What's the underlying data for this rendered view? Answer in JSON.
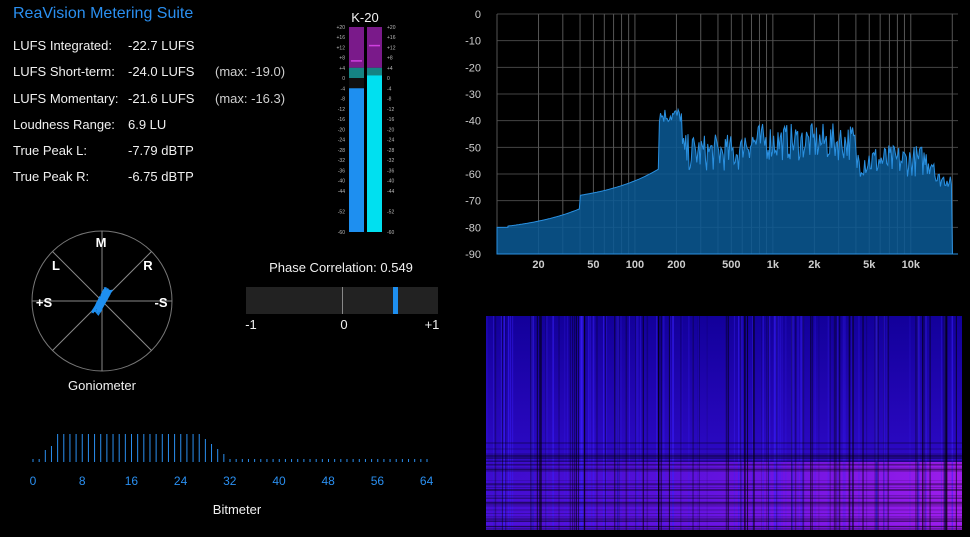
{
  "app": {
    "title": "ReaVision Metering Suite"
  },
  "readouts": [
    {
      "label": "LUFS Integrated:",
      "value": "-22.7 LUFS",
      "max": ""
    },
    {
      "label": "LUFS Short-term:",
      "value": "-24.0 LUFS",
      "max": "(max: -19.0)"
    },
    {
      "label": "LUFS Momentary:",
      "value": "-21.6 LUFS",
      "max": "(max: -16.3)"
    },
    {
      "label": "Loudness Range:",
      "value": "6.9 LU",
      "max": ""
    },
    {
      "label": "True Peak L:",
      "value": "-7.79 dBTP",
      "max": ""
    },
    {
      "label": "True Peak R:",
      "value": "-6.75 dBTP",
      "max": ""
    }
  ],
  "kmeter": {
    "title": "K-20",
    "scale": [
      "+20",
      "+16",
      "+12",
      "+8",
      "+4",
      "0",
      "-4",
      "-8",
      "-12",
      "-16",
      "-20",
      "-24",
      "-28",
      "-32",
      "-36",
      "-40",
      "-44",
      "-52",
      "-60"
    ],
    "left_level_db": -4,
    "right_level_db": 1,
    "left_peak_db": 7,
    "right_peak_db": 13,
    "colors": {
      "left": "#1e8ff0",
      "right": "#00e0f0",
      "hot": "#7a1a8a",
      "warn": "#16a0a0"
    }
  },
  "goniometer": {
    "caption": "Goniometer",
    "labels": {
      "top": "M",
      "left": "L",
      "right": "R",
      "side_left": "+S",
      "side_right": "-S"
    }
  },
  "phase": {
    "caption_prefix": "Phase Correlation:",
    "value": 0.549,
    "value_text": "0.549",
    "scale": [
      "-1",
      "0",
      "+1"
    ]
  },
  "bitmeter": {
    "caption": "Bitmeter",
    "ticks": [
      "0",
      "8",
      "16",
      "24",
      "32",
      "40",
      "48",
      "56",
      "64"
    ],
    "color": "#2a8ff0"
  },
  "spectrum": {
    "y_ticks": [
      "0",
      "-10",
      "-20",
      "-30",
      "-40",
      "-50",
      "-60",
      "-70",
      "-80",
      "-90"
    ],
    "x_ticks": [
      "20",
      "50",
      "100",
      "200",
      "500",
      "1k",
      "2k",
      "5k",
      "10k"
    ],
    "fill_color": "#0a5a96",
    "line_color": "#2a90e0"
  },
  "spectrogram": {
    "colors": [
      "#1a00a0",
      "#5a10e0",
      "#a020f0"
    ]
  }
}
